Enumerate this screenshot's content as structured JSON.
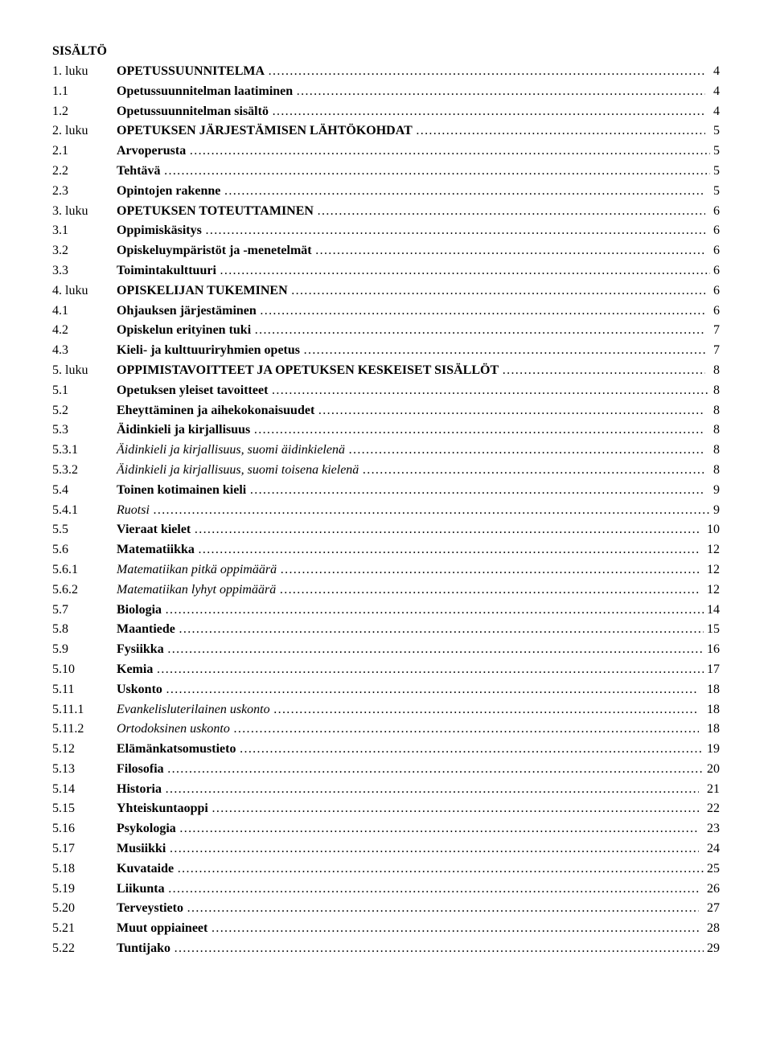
{
  "title": "SISÄLTÖ",
  "entries": [
    {
      "num": "1. luku",
      "title": "OPETUSSUUNNITELMA",
      "page": "4",
      "style": "bold"
    },
    {
      "num": "1.1",
      "title": "Opetussuunnitelman laatiminen",
      "page": "4",
      "style": "bold"
    },
    {
      "num": "1.2",
      "title": "Opetussuunnitelman sisältö",
      "page": "4",
      "style": "bold"
    },
    {
      "num": "2. luku",
      "title": "OPETUKSEN JÄRJESTÄMISEN LÄHTÖKOHDAT",
      "page": "5",
      "style": "bold"
    },
    {
      "num": "2.1",
      "title": "Arvoperusta",
      "page": "5",
      "style": "bold",
      "attached": true
    },
    {
      "num": "2.2",
      "title": "Tehtävä",
      "page": "5",
      "style": "bold",
      "attached": true
    },
    {
      "num": "2.3",
      "title": "Opintojen rakenne",
      "page": "5",
      "style": "bold"
    },
    {
      "num": "3. luku",
      "title": "OPETUKSEN TOTEUTTAMINEN",
      "page": "6",
      "style": "bold"
    },
    {
      "num": "3.1",
      "title": "Oppimiskäsitys",
      "page": "6",
      "style": "bold"
    },
    {
      "num": "3.2",
      "title": "Opiskeluympäristöt ja -menetelmät",
      "page": "6",
      "style": "bold"
    },
    {
      "num": "3.3",
      "title": "Toimintakulttuuri",
      "page": "6",
      "style": "bold",
      "attached": true
    },
    {
      "num": "4. luku",
      "title": "OPISKELIJAN TUKEMINEN",
      "page": "6",
      "style": "bold"
    },
    {
      "num": "4.1",
      "title": "Ohjauksen järjestäminen",
      "page": "6",
      "style": "bold"
    },
    {
      "num": "4.2",
      "title": "Opiskelun erityinen tuki",
      "page": "7",
      "style": "bold"
    },
    {
      "num": "4.3",
      "title": "Kieli- ja kulttuuriryhmien opetus",
      "page": "7",
      "style": "bold"
    },
    {
      "num": "5. luku",
      "title": "OPPIMISTAVOITTEET JA OPETUKSEN KESKEISET SISÄLLÖT",
      "page": "8",
      "style": "bold"
    },
    {
      "num": "5.1",
      "title": "Opetuksen yleiset tavoitteet",
      "page": "8",
      "style": "bold",
      "attached": true
    },
    {
      "num": "5.2",
      "title": "Eheyttäminen ja aihekokonaisuudet",
      "page": "8",
      "style": "bold"
    },
    {
      "num": "5.3",
      "title": "Äidinkieli ja kirjallisuus",
      "page": "8",
      "style": "bold"
    },
    {
      "num": "5.3.1",
      "title": "Äidinkieli ja kirjallisuus, suomi äidinkielenä",
      "page": "8",
      "style": "italic"
    },
    {
      "num": "5.3.2",
      "title": "Äidinkieli ja kirjallisuus, suomi toisena kielenä",
      "page": "8",
      "style": "italic"
    },
    {
      "num": "5.4",
      "title": "Toinen kotimainen kieli",
      "page": "9",
      "style": "bold"
    },
    {
      "num": "5.4.1",
      "title": "Ruotsi",
      "page": "9",
      "style": "italic",
      "attached": true
    },
    {
      "num": "5.5",
      "title": "Vieraat kielet",
      "page": "10",
      "style": "bold"
    },
    {
      "num": "5.6",
      "title": "Matematiikka",
      "page": "12",
      "style": "bold"
    },
    {
      "num": "5.6.1",
      "title": "Matematiikan pitkä oppimäärä",
      "page": "12",
      "style": "italic"
    },
    {
      "num": "5.6.2",
      "title": "Matematiikan lyhyt oppimäärä",
      "page": "12",
      "style": "italic"
    },
    {
      "num": "5.7",
      "title": "Biologia",
      "page": "14",
      "style": "bold",
      "attached": true
    },
    {
      "num": "5.8",
      "title": "Maantiede",
      "page": "15",
      "style": "bold",
      "attached": true
    },
    {
      "num": "5.9",
      "title": "Fysiikka",
      "page": "16",
      "style": "bold",
      "attached": true
    },
    {
      "num": "5.10",
      "title": "Kemia",
      "page": "17",
      "style": "bold",
      "attached": true
    },
    {
      "num": "5.11",
      "title": "Uskonto",
      "page": "18",
      "style": "bold"
    },
    {
      "num": "5.11.1",
      "title": "Evankelisluterilainen uskonto",
      "page": "18",
      "style": "italic"
    },
    {
      "num": "5.11.2",
      "title": "Ortodoksinen uskonto",
      "page": "18",
      "style": "italic"
    },
    {
      "num": "5.12",
      "title": "Elämänkatsomustieto",
      "page": "19",
      "style": "bold",
      "attached": true
    },
    {
      "num": "5.13",
      "title": "Filosofia",
      "page": "20",
      "style": "bold",
      "attached": true
    },
    {
      "num": "5.14",
      "title": "Historia",
      "page": "21",
      "style": "bold"
    },
    {
      "num": "5.15",
      "title": "Yhteiskuntaoppi",
      "page": "22",
      "style": "bold"
    },
    {
      "num": "5.16",
      "title": "Psykologia",
      "page": "23",
      "style": "bold"
    },
    {
      "num": "5.17",
      "title": "Musiikki",
      "page": "24",
      "style": "bold"
    },
    {
      "num": "5.18",
      "title": "Kuvataide",
      "page": "25",
      "style": "bold",
      "attached": true
    },
    {
      "num": "5.19",
      "title": "Liikunta",
      "page": "26",
      "style": "bold"
    },
    {
      "num": "5.20",
      "title": "Terveystieto",
      "page": "27",
      "style": "bold"
    },
    {
      "num": "5.21",
      "title": "Muut oppiaineet",
      "page": "28",
      "style": "bold"
    },
    {
      "num": "5.22",
      "title": "Tuntijako",
      "page": "29",
      "style": "bold",
      "attached": true
    }
  ]
}
